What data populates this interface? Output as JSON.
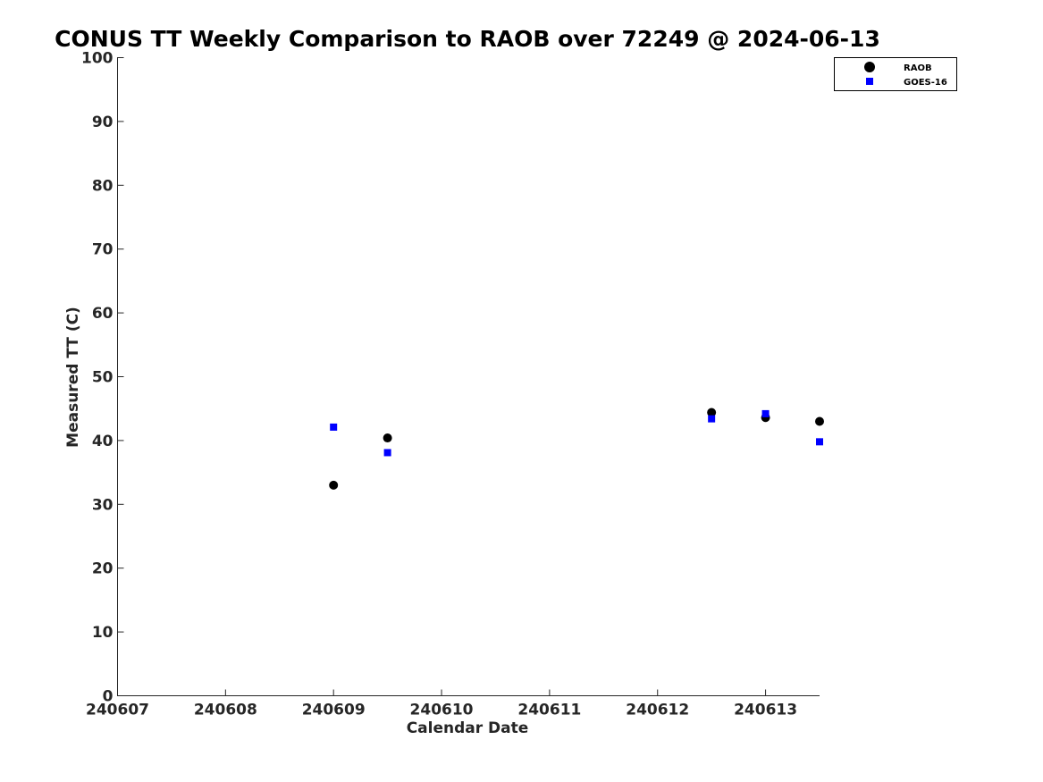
{
  "chart_data": {
    "type": "scatter",
    "title": "CONUS TT Weekly Comparison to RAOB over 72249 @ 2024-06-13",
    "xlabel": "Calendar Date",
    "ylabel": "Measured TT (C)",
    "x_ticks": [
      "240607",
      "240608",
      "240609",
      "240610",
      "240611",
      "240612",
      "240613"
    ],
    "xlim": [
      "240607",
      "240613.5"
    ],
    "y_ticks": [
      "0",
      "10",
      "20",
      "30",
      "40",
      "50",
      "60",
      "70",
      "80",
      "90",
      "100"
    ],
    "ylim": [
      0,
      100
    ],
    "grid": false,
    "legend_position": "top-right",
    "series": [
      {
        "name": "RAOB",
        "marker": "circle",
        "color": "#000000",
        "points": [
          {
            "x": "240609",
            "y": 33.0
          },
          {
            "x": "240609.5",
            "y": 40.4
          },
          {
            "x": "240612.5",
            "y": 44.4
          },
          {
            "x": "240613",
            "y": 43.6
          },
          {
            "x": "240613.5",
            "y": 43.0
          }
        ]
      },
      {
        "name": "GOES-16",
        "marker": "square",
        "color": "#0000ff",
        "points": [
          {
            "x": "240609",
            "y": 42.1
          },
          {
            "x": "240609.5",
            "y": 38.1
          },
          {
            "x": "240612.5",
            "y": 43.4
          },
          {
            "x": "240613",
            "y": 44.2
          },
          {
            "x": "240613.5",
            "y": 39.8
          }
        ]
      }
    ]
  }
}
